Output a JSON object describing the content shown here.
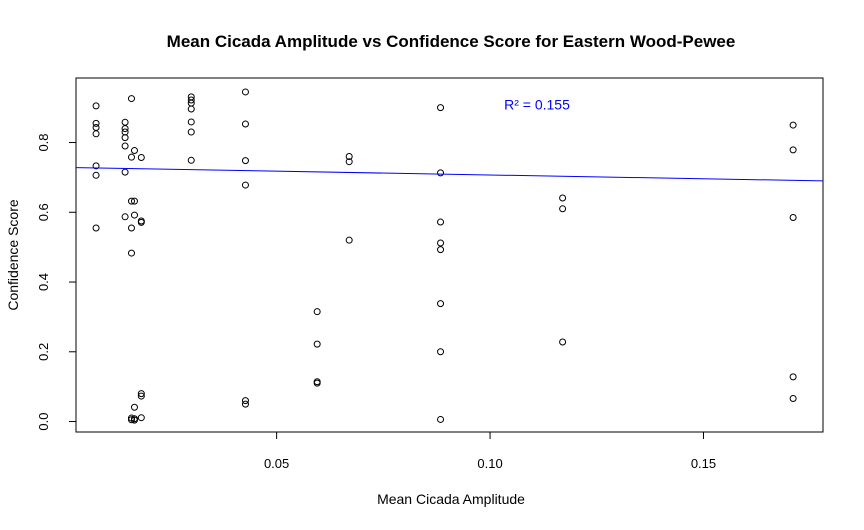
{
  "chart_data": {
    "type": "scatter",
    "title": "Mean Cicada Amplitude vs Confidence Score for Eastern Wood-Pewee",
    "xlabel": "Mean Cicada Amplitude",
    "ylabel": "Confidence Score",
    "xlim": [
      0.003,
      0.178
    ],
    "ylim": [
      -0.03,
      0.985
    ],
    "xticks": [
      0.05,
      0.1,
      0.15
    ],
    "xtick_labels": [
      "0.05",
      "0.10",
      "0.15"
    ],
    "yticks": [
      0.0,
      0.2,
      0.4,
      0.6,
      0.8
    ],
    "ytick_labels": [
      "0.0",
      "0.2",
      "0.4",
      "0.6",
      "0.8"
    ],
    "grid": false,
    "annotation": {
      "text": "R² = 0.155",
      "color": "#0000ff",
      "x": 0.111,
      "y": 0.895
    },
    "regression_line": {
      "color": "#0000ff",
      "x": [
        0.003,
        0.178
      ],
      "y": [
        0.728,
        0.69
      ]
    },
    "point_color": "#000000",
    "points": [
      [
        0.0077,
        0.905
      ],
      [
        0.0077,
        0.855
      ],
      [
        0.0077,
        0.843
      ],
      [
        0.0077,
        0.825
      ],
      [
        0.0077,
        0.733
      ],
      [
        0.0077,
        0.706
      ],
      [
        0.0077,
        0.555
      ],
      [
        0.0145,
        0.858
      ],
      [
        0.0145,
        0.84
      ],
      [
        0.0145,
        0.83
      ],
      [
        0.0145,
        0.814
      ],
      [
        0.0145,
        0.79
      ],
      [
        0.0145,
        0.715
      ],
      [
        0.0145,
        0.587
      ],
      [
        0.016,
        0.926
      ],
      [
        0.016,
        0.758
      ],
      [
        0.016,
        0.632
      ],
      [
        0.016,
        0.555
      ],
      [
        0.016,
        0.483
      ],
      [
        0.016,
        0.01
      ],
      [
        0.016,
        0.005
      ],
      [
        0.0167,
        0.777
      ],
      [
        0.0167,
        0.632
      ],
      [
        0.0167,
        0.592
      ],
      [
        0.0167,
        0.041
      ],
      [
        0.0167,
        0.008
      ],
      [
        0.0167,
        0.004
      ],
      [
        0.0183,
        0.757
      ],
      [
        0.0183,
        0.575
      ],
      [
        0.0183,
        0.571
      ],
      [
        0.0183,
        0.08
      ],
      [
        0.0183,
        0.073
      ],
      [
        0.0183,
        0.011
      ],
      [
        0.03,
        0.931
      ],
      [
        0.03,
        0.922
      ],
      [
        0.03,
        0.913
      ],
      [
        0.03,
        0.896
      ],
      [
        0.03,
        0.859
      ],
      [
        0.03,
        0.83
      ],
      [
        0.03,
        0.749
      ],
      [
        0.0427,
        0.945
      ],
      [
        0.0427,
        0.853
      ],
      [
        0.0427,
        0.748
      ],
      [
        0.0427,
        0.678
      ],
      [
        0.0427,
        0.06
      ],
      [
        0.0427,
        0.05
      ],
      [
        0.0595,
        0.315
      ],
      [
        0.0595,
        0.222
      ],
      [
        0.0595,
        0.114
      ],
      [
        0.0595,
        0.11
      ],
      [
        0.067,
        0.76
      ],
      [
        0.067,
        0.745
      ],
      [
        0.067,
        0.52
      ],
      [
        0.0884,
        0.9
      ],
      [
        0.0884,
        0.713
      ],
      [
        0.0884,
        0.572
      ],
      [
        0.0884,
        0.512
      ],
      [
        0.0884,
        0.493
      ],
      [
        0.0884,
        0.338
      ],
      [
        0.0884,
        0.2
      ],
      [
        0.0884,
        0.006
      ],
      [
        0.117,
        0.641
      ],
      [
        0.117,
        0.61
      ],
      [
        0.117,
        0.228
      ],
      [
        0.171,
        0.85
      ],
      [
        0.171,
        0.779
      ],
      [
        0.171,
        0.585
      ],
      [
        0.171,
        0.128
      ],
      [
        0.171,
        0.066
      ]
    ]
  }
}
